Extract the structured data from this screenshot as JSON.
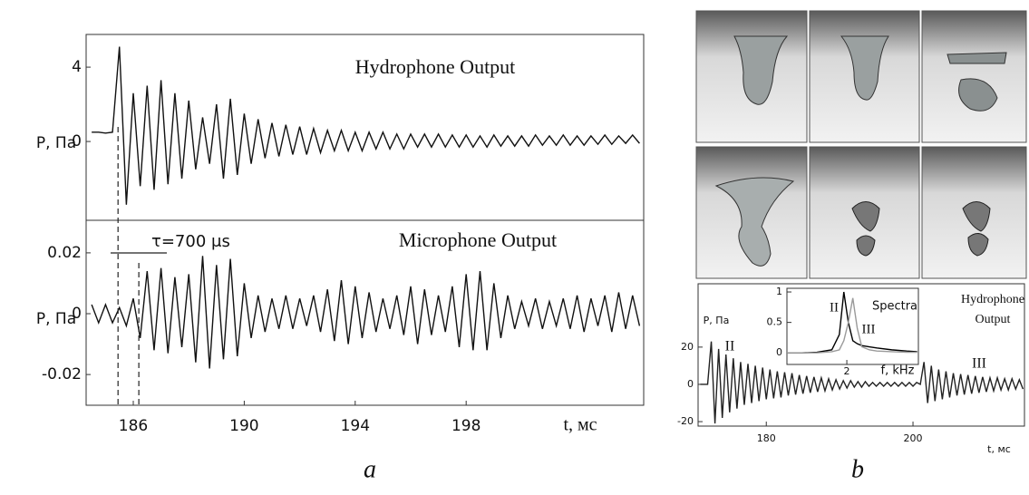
{
  "chart_data": [
    {
      "type": "line",
      "annotation": "Hydrophone Output",
      "ylabel": "P, Па",
      "xlim": [
        184.3,
        204.4
      ],
      "ylim": [
        -4.24,
        5.76
      ],
      "yticks": [
        0,
        4
      ],
      "x": [
        184.5,
        184.75,
        185,
        185.25,
        185.5,
        185.75,
        186,
        186.25,
        186.5,
        186.75,
        187,
        187.25,
        187.5,
        187.75,
        188,
        188.25,
        188.5,
        188.75,
        189,
        189.25,
        189.5,
        189.75,
        190,
        190.25,
        190.5,
        190.75,
        191,
        191.25,
        191.5,
        191.75,
        192,
        192.25,
        192.5,
        192.75,
        193,
        193.25,
        193.5,
        193.75,
        194,
        194.25,
        194.5,
        194.75,
        195,
        195.25,
        195.5,
        195.75,
        196,
        196.25,
        196.5,
        196.75,
        197,
        197.25,
        197.5,
        197.75,
        198,
        198.25,
        198.5,
        198.75,
        199,
        199.25,
        199.5,
        199.75,
        200,
        200.25,
        200.5,
        200.75,
        201,
        201.25,
        201.5,
        201.75,
        202,
        202.25,
        202.5,
        202.75,
        203,
        203.25,
        203.5,
        203.75,
        204,
        204.25
      ],
      "series": [
        {
          "color": "#111111",
          "values": [
            0.5,
            0.5,
            0.45,
            0.5,
            5.1,
            -3.4,
            2.6,
            -2.4,
            3.0,
            -2.6,
            3.3,
            -2.3,
            2.6,
            -2.0,
            2.2,
            -1.5,
            1.3,
            -1.2,
            2.0,
            -2.0,
            2.3,
            -1.8,
            1.5,
            -1.2,
            1.2,
            -0.9,
            1.0,
            -0.8,
            0.9,
            -0.7,
            0.8,
            -0.7,
            0.7,
            -0.6,
            0.6,
            -0.5,
            0.6,
            -0.5,
            0.5,
            -0.5,
            0.5,
            -0.4,
            0.5,
            -0.4,
            0.4,
            -0.4,
            0.4,
            -0.3,
            0.4,
            -0.3,
            0.4,
            -0.3,
            0.35,
            -0.3,
            0.35,
            -0.3,
            0.3,
            -0.3,
            0.35,
            -0.25,
            0.3,
            -0.25,
            0.3,
            -0.25,
            0.35,
            -0.2,
            0.3,
            -0.2,
            0.35,
            -0.2,
            0.3,
            -0.2,
            0.3,
            -0.15,
            0.35,
            -0.15,
            0.3,
            -0.1,
            0.35,
            -0.1
          ]
        }
      ]
    },
    {
      "type": "line",
      "annotation": "Microphone Output",
      "ylabel": "P, Па",
      "xlabel": "t, мс",
      "interval_label": "τ=700 μs",
      "markers": [
        185.45,
        186.2
      ],
      "xlim": [
        184.3,
        204.4
      ],
      "ylim": [
        -0.0301,
        0.0307
      ],
      "yticks": [
        -0.02,
        0,
        0.02
      ],
      "xticks": [
        186,
        190,
        194,
        198
      ],
      "x": [
        184.5,
        184.75,
        185,
        185.25,
        185.5,
        185.75,
        186,
        186.25,
        186.5,
        186.75,
        187,
        187.25,
        187.5,
        187.75,
        188,
        188.25,
        188.5,
        188.75,
        189,
        189.25,
        189.5,
        189.75,
        190,
        190.25,
        190.5,
        190.75,
        191,
        191.25,
        191.5,
        191.75,
        192,
        192.25,
        192.5,
        192.75,
        193,
        193.25,
        193.5,
        193.75,
        194,
        194.25,
        194.5,
        194.75,
        195,
        195.25,
        195.5,
        195.75,
        196,
        196.25,
        196.5,
        196.75,
        197,
        197.25,
        197.5,
        197.75,
        198,
        198.25,
        198.5,
        198.75,
        199,
        199.25,
        199.5,
        199.75,
        200,
        200.25,
        200.5,
        200.75,
        201,
        201.25,
        201.5,
        201.75,
        202,
        202.25,
        202.5,
        202.75,
        203,
        203.25,
        203.5,
        203.75,
        204,
        204.25
      ],
      "series": [
        {
          "color": "#111111",
          "values": [
            0.003,
            -0.003,
            0.003,
            -0.003,
            0.002,
            -0.004,
            0.005,
            -0.008,
            0.014,
            -0.012,
            0.015,
            -0.013,
            0.012,
            -0.011,
            0.013,
            -0.016,
            0.019,
            -0.018,
            0.016,
            -0.015,
            0.018,
            -0.014,
            0.01,
            -0.008,
            0.006,
            -0.006,
            0.005,
            -0.005,
            0.006,
            -0.005,
            0.005,
            -0.004,
            0.006,
            -0.006,
            0.008,
            -0.009,
            0.011,
            -0.01,
            0.009,
            -0.008,
            0.007,
            -0.006,
            0.005,
            -0.005,
            0.006,
            -0.007,
            0.009,
            -0.01,
            0.008,
            -0.007,
            0.006,
            -0.006,
            0.009,
            -0.011,
            0.013,
            -0.012,
            0.014,
            -0.012,
            0.01,
            -0.008,
            0.006,
            -0.005,
            0.004,
            -0.004,
            0.005,
            -0.005,
            0.004,
            -0.004,
            0.005,
            -0.005,
            0.006,
            -0.006,
            0.005,
            -0.004,
            0.006,
            -0.006,
            0.007,
            -0.005,
            0.006,
            -0.004
          ]
        }
      ]
    },
    {
      "type": "line",
      "annotation": [
        "Hydrophone",
        "Output"
      ],
      "ylabel": "P, Па",
      "xlabel": "t, мс",
      "labels": [
        "II",
        "III"
      ],
      "xlim": [
        170.7,
        215.2
      ],
      "ylim": [
        -22.4,
        54
      ],
      "yticks": [
        -20,
        0,
        20
      ],
      "xticks": [
        180,
        200
      ],
      "x": [
        171,
        171.5,
        172,
        172.5,
        173,
        173.5,
        174,
        174.5,
        175,
        175.5,
        176,
        176.5,
        177,
        177.5,
        178,
        178.5,
        179,
        179.5,
        180,
        180.5,
        181,
        181.5,
        182,
        182.5,
        183,
        183.5,
        184,
        184.5,
        185,
        185.5,
        186,
        186.5,
        187,
        187.5,
        188,
        188.5,
        189,
        189.5,
        190,
        190.5,
        191,
        191.5,
        192,
        192.5,
        193,
        193.5,
        194,
        194.5,
        195,
        195.5,
        196,
        196.5,
        197,
        197.5,
        198,
        198.5,
        199,
        199.5,
        200,
        200.5,
        201,
        201.5,
        202,
        202.5,
        203,
        203.5,
        204,
        204.5,
        205,
        205.5,
        206,
        206.5,
        207,
        207.5,
        208,
        208.5,
        209,
        209.5,
        210,
        210.5,
        211,
        211.5,
        212,
        212.5,
        213,
        213.5,
        214,
        214.5,
        215
      ],
      "series": [
        {
          "color": "#222222",
          "values": [
            0,
            0,
            0,
            23,
            -21,
            19,
            -18,
            16,
            -15,
            14,
            -13,
            12,
            -11,
            11,
            -10,
            10,
            -9,
            9,
            -8,
            8,
            -7.5,
            7,
            -7,
            6.5,
            -6,
            6,
            -5.5,
            5,
            -5,
            4.5,
            -4.5,
            4,
            -4,
            3.5,
            -3.5,
            3,
            -3,
            2.5,
            -2.5,
            2,
            -2,
            2,
            -1.5,
            1.5,
            -1.5,
            1.5,
            -1,
            1,
            -1,
            1,
            -1,
            1,
            -1,
            1,
            -1,
            1,
            -1,
            1,
            -1,
            1,
            0,
            12,
            -10,
            10,
            -9,
            8,
            -8,
            7,
            -7,
            6,
            -6,
            5.5,
            -5.5,
            5,
            -5,
            4.5,
            -4.5,
            4,
            -4,
            3.5,
            -3.5,
            3.5,
            -3,
            3,
            -3,
            3,
            -2.5,
            2.5,
            -2.5
          ]
        }
      ]
    },
    {
      "type": "line",
      "annotation": "Spectra",
      "xlabel": "f, kHz",
      "xlim": [
        0,
        4.39
      ],
      "ylim": [
        -0.19,
        1.06
      ],
      "yticks": [
        0,
        0.5,
        1
      ],
      "xticks": [
        2
      ],
      "x": [
        0,
        0.5,
        1,
        1.5,
        1.75,
        1.9,
        2.05,
        2.2,
        2.35,
        2.5,
        2.75,
        3,
        3.5,
        4,
        4.35
      ],
      "series": [
        {
          "name": "II",
          "color": "#000000",
          "values": [
            0,
            0,
            0.01,
            0.05,
            0.3,
            1.0,
            0.5,
            0.2,
            0.15,
            0.12,
            0.1,
            0.08,
            0.05,
            0.03,
            0.02
          ]
        },
        {
          "name": "III",
          "color": "#9a9a9a",
          "values": [
            0,
            0,
            0,
            0.02,
            0.05,
            0.2,
            0.5,
            0.9,
            0.4,
            0.1,
            0.05,
            0.03,
            0.02,
            0.01,
            0.01
          ]
        }
      ]
    }
  ],
  "captions": [
    "a",
    "b"
  ]
}
